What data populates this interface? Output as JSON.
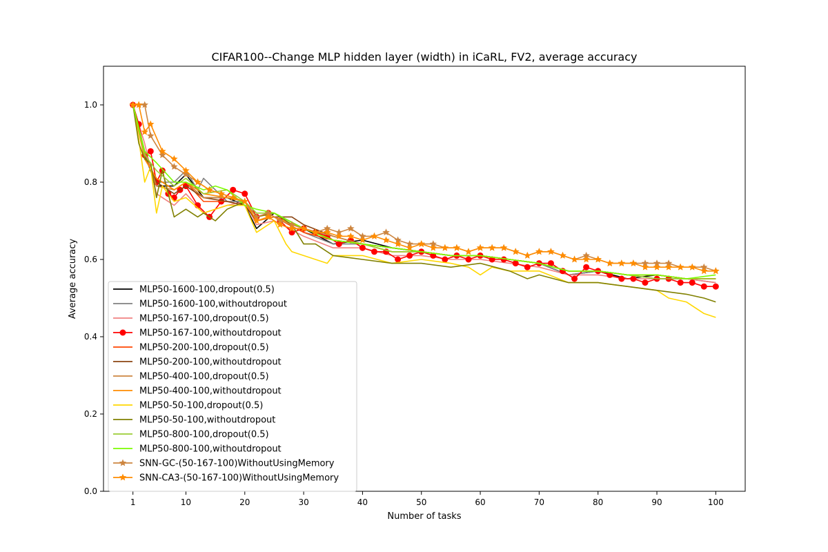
{
  "chart_data": {
    "type": "line",
    "title": "CIFAR100--Change MLP hidden layer (width) in iCaRL, FV2, average accuracy",
    "xlabel": "Number of tasks",
    "ylabel": "Average accuracy",
    "xlim": [
      -4,
      105
    ],
    "ylim": [
      0.0,
      1.1
    ],
    "xticks": [
      1,
      10,
      20,
      30,
      40,
      50,
      60,
      70,
      80,
      90,
      100
    ],
    "yticks": [
      0.0,
      0.2,
      0.4,
      0.6,
      0.8,
      1.0
    ],
    "ytick_labels": [
      "0.0",
      "0.2",
      "0.4",
      "0.6",
      "0.8",
      "1.0"
    ],
    "legend_position": "lower-left",
    "grid": false,
    "series": [
      {
        "name": "MLP50-1600-100,dropout(0.5)",
        "color": "#000000",
        "marker": "none",
        "x": [
          1,
          3,
          5,
          8,
          10,
          13,
          17,
          20,
          22,
          25,
          30,
          35,
          40,
          45,
          50,
          55,
          60,
          65,
          70,
          75,
          80,
          85,
          90,
          95,
          100
        ],
        "y": [
          1.0,
          0.87,
          0.79,
          0.79,
          0.82,
          0.76,
          0.76,
          0.74,
          0.68,
          0.72,
          0.68,
          0.64,
          0.65,
          0.63,
          0.62,
          0.61,
          0.61,
          0.6,
          0.59,
          0.56,
          0.57,
          0.55,
          0.56,
          0.55,
          0.55
        ]
      },
      {
        "name": "MLP50-1600-100,withoutdropout",
        "color": "#808080",
        "marker": "none",
        "x": [
          1,
          3,
          5,
          8,
          10,
          12,
          13,
          17,
          20,
          22,
          25,
          30,
          35,
          40,
          45,
          50,
          55,
          60,
          65,
          70,
          75,
          80,
          85,
          90,
          95,
          100
        ],
        "y": [
          1.0,
          0.88,
          0.8,
          0.8,
          0.83,
          0.78,
          0.81,
          0.75,
          0.75,
          0.7,
          0.71,
          0.67,
          0.64,
          0.64,
          0.63,
          0.62,
          0.61,
          0.61,
          0.6,
          0.59,
          0.56,
          0.57,
          0.56,
          0.55,
          0.55,
          0.54
        ]
      },
      {
        "name": "MLP50-167-100,dropout(0.5)",
        "color": "#f08080",
        "marker": "none",
        "x": [
          1,
          3,
          5,
          8,
          10,
          13,
          17,
          20,
          22,
          25,
          30,
          35,
          40,
          45,
          50,
          55,
          60,
          65,
          70,
          75,
          80,
          85,
          90,
          95,
          100
        ],
        "y": [
          1.0,
          0.9,
          0.77,
          0.74,
          0.77,
          0.72,
          0.74,
          0.75,
          0.69,
          0.7,
          0.66,
          0.63,
          0.63,
          0.61,
          0.61,
          0.6,
          0.6,
          0.59,
          0.58,
          0.56,
          0.56,
          0.55,
          0.55,
          0.55,
          0.54
        ]
      },
      {
        "name": "MLP50-167-100,withoutdropout",
        "color": "#ff0000",
        "marker": "circle",
        "x": [
          1,
          2,
          3,
          4,
          5,
          6,
          7,
          8,
          9,
          10,
          12,
          14,
          16,
          18,
          20,
          22,
          24,
          26,
          28,
          30,
          32,
          34,
          36,
          38,
          40,
          42,
          44,
          46,
          48,
          50,
          52,
          54,
          56,
          58,
          60,
          62,
          64,
          66,
          68,
          70,
          72,
          74,
          76,
          78,
          80,
          82,
          84,
          86,
          88,
          90,
          92,
          94,
          96,
          98,
          100
        ],
        "y": [
          1.0,
          0.95,
          0.87,
          0.88,
          0.8,
          0.83,
          0.77,
          0.76,
          0.78,
          0.79,
          0.74,
          0.71,
          0.75,
          0.78,
          0.77,
          0.71,
          0.72,
          0.7,
          0.67,
          0.68,
          0.67,
          0.66,
          0.64,
          0.65,
          0.63,
          0.62,
          0.62,
          0.6,
          0.61,
          0.62,
          0.61,
          0.6,
          0.61,
          0.6,
          0.61,
          0.6,
          0.6,
          0.59,
          0.58,
          0.59,
          0.59,
          0.57,
          0.55,
          0.58,
          0.57,
          0.56,
          0.55,
          0.55,
          0.54,
          0.55,
          0.55,
          0.54,
          0.54,
          0.53,
          0.53
        ]
      },
      {
        "name": "MLP50-200-100,dropout(0.5)",
        "color": "#ff4500",
        "marker": "none",
        "x": [
          1,
          3,
          5,
          8,
          10,
          13,
          17,
          20,
          22,
          25,
          30,
          35,
          40,
          45,
          50,
          55,
          60,
          65,
          70,
          75,
          80,
          85,
          90,
          95,
          100
        ],
        "y": [
          1.0,
          0.86,
          0.81,
          0.78,
          0.8,
          0.75,
          0.75,
          0.74,
          0.7,
          0.71,
          0.67,
          0.65,
          0.64,
          0.62,
          0.62,
          0.61,
          0.61,
          0.6,
          0.59,
          0.57,
          0.57,
          0.56,
          0.56,
          0.55,
          0.55
        ]
      },
      {
        "name": "MLP50-200-100,withoutdropout",
        "color": "#8b4513",
        "marker": "none",
        "x": [
          1,
          3,
          5,
          8,
          10,
          13,
          17,
          20,
          22,
          25,
          28,
          30,
          35,
          40,
          45,
          50,
          55,
          60,
          65,
          70,
          75,
          80,
          85,
          90,
          95,
          100
        ],
        "y": [
          1.0,
          0.87,
          0.8,
          0.77,
          0.79,
          0.76,
          0.75,
          0.74,
          0.7,
          0.71,
          0.71,
          0.69,
          0.66,
          0.64,
          0.63,
          0.62,
          0.61,
          0.61,
          0.6,
          0.59,
          0.57,
          0.57,
          0.56,
          0.56,
          0.55,
          0.55
        ]
      },
      {
        "name": "MLP50-400-100,dropout(0.5)",
        "color": "#cd853f",
        "marker": "none",
        "x": [
          1,
          3,
          5,
          8,
          10,
          13,
          17,
          20,
          22,
          25,
          30,
          35,
          40,
          45,
          50,
          55,
          60,
          65,
          70,
          75,
          80,
          85,
          90,
          95,
          100
        ],
        "y": [
          1.0,
          0.88,
          0.79,
          0.78,
          0.8,
          0.76,
          0.76,
          0.75,
          0.71,
          0.72,
          0.68,
          0.66,
          0.64,
          0.62,
          0.62,
          0.61,
          0.61,
          0.6,
          0.59,
          0.57,
          0.57,
          0.56,
          0.56,
          0.55,
          0.55
        ]
      },
      {
        "name": "MLP50-400-100,withoutdropout",
        "color": "#ff8c00",
        "marker": "none",
        "x": [
          1,
          3,
          5,
          8,
          10,
          13,
          17,
          20,
          22,
          25,
          30,
          35,
          40,
          45,
          50,
          55,
          60,
          65,
          70,
          75,
          80,
          85,
          90,
          95,
          100
        ],
        "y": [
          1.0,
          0.86,
          0.81,
          0.78,
          0.8,
          0.77,
          0.76,
          0.75,
          0.7,
          0.71,
          0.68,
          0.65,
          0.64,
          0.62,
          0.62,
          0.61,
          0.61,
          0.6,
          0.59,
          0.57,
          0.57,
          0.56,
          0.56,
          0.55,
          0.55
        ]
      },
      {
        "name": "MLP50-50-100,dropout(0.5)",
        "color": "#ffd700",
        "marker": "none",
        "x": [
          1,
          2,
          3,
          4,
          5,
          6,
          8,
          10,
          13,
          17,
          20,
          22,
          25,
          27,
          28,
          30,
          32,
          34,
          35,
          40,
          45,
          50,
          55,
          58,
          60,
          62,
          65,
          70,
          75,
          80,
          85,
          90,
          92,
          95,
          98,
          100
        ],
        "y": [
          1.0,
          0.91,
          0.8,
          0.84,
          0.72,
          0.79,
          0.75,
          0.76,
          0.72,
          0.74,
          0.74,
          0.67,
          0.7,
          0.64,
          0.62,
          0.61,
          0.6,
          0.59,
          0.61,
          0.61,
          0.59,
          0.6,
          0.59,
          0.58,
          0.56,
          0.58,
          0.57,
          0.57,
          0.54,
          0.54,
          0.53,
          0.52,
          0.5,
          0.49,
          0.46,
          0.45
        ]
      },
      {
        "name": "MLP50-50-100,withoutdropout",
        "color": "#808000",
        "marker": "none",
        "x": [
          1,
          2,
          3,
          4,
          5,
          6,
          8,
          10,
          12,
          13,
          15,
          17,
          20,
          22,
          25,
          28,
          30,
          32,
          35,
          40,
          45,
          50,
          55,
          60,
          65,
          68,
          70,
          75,
          80,
          85,
          90,
          95,
          98,
          100
        ],
        "y": [
          1.0,
          0.9,
          0.86,
          0.85,
          0.76,
          0.83,
          0.71,
          0.73,
          0.71,
          0.72,
          0.7,
          0.73,
          0.75,
          0.71,
          0.72,
          0.69,
          0.64,
          0.64,
          0.61,
          0.6,
          0.59,
          0.59,
          0.58,
          0.59,
          0.57,
          0.55,
          0.56,
          0.54,
          0.54,
          0.53,
          0.52,
          0.51,
          0.5,
          0.49
        ]
      },
      {
        "name": "MLP50-800-100,dropout(0.5)",
        "color": "#9acd32",
        "marker": "none",
        "x": [
          1,
          3,
          5,
          8,
          10,
          13,
          17,
          20,
          22,
          25,
          30,
          35,
          40,
          45,
          50,
          55,
          60,
          65,
          70,
          75,
          80,
          85,
          90,
          95,
          100
        ],
        "y": [
          1.0,
          0.87,
          0.83,
          0.79,
          0.81,
          0.77,
          0.78,
          0.75,
          0.72,
          0.72,
          0.68,
          0.65,
          0.64,
          0.62,
          0.62,
          0.61,
          0.61,
          0.6,
          0.59,
          0.57,
          0.57,
          0.56,
          0.55,
          0.55,
          0.55
        ]
      },
      {
        "name": "MLP50-800-100,withoutdropout",
        "color": "#7cfc00",
        "marker": "none",
        "x": [
          1,
          3,
          5,
          8,
          10,
          13,
          15,
          17,
          20,
          22,
          25,
          30,
          35,
          40,
          45,
          50,
          55,
          60,
          65,
          70,
          75,
          80,
          85,
          90,
          95,
          100
        ],
        "y": [
          1.0,
          0.88,
          0.85,
          0.8,
          0.8,
          0.78,
          0.79,
          0.78,
          0.74,
          0.73,
          0.72,
          0.68,
          0.65,
          0.64,
          0.63,
          0.62,
          0.61,
          0.61,
          0.6,
          0.59,
          0.57,
          0.57,
          0.56,
          0.56,
          0.55,
          0.56
        ]
      },
      {
        "name": "SNN-GC-(50-167-100)WithoutUsingMemory",
        "color": "#cd853f",
        "marker": "star",
        "x": [
          1,
          2,
          3,
          4,
          6,
          8,
          10,
          12,
          14,
          16,
          18,
          20,
          22,
          24,
          26,
          28,
          30,
          32,
          34,
          36,
          38,
          40,
          42,
          44,
          46,
          48,
          50,
          52,
          54,
          56,
          58,
          60,
          62,
          64,
          66,
          68,
          70,
          72,
          74,
          76,
          78,
          80,
          82,
          84,
          86,
          88,
          90,
          92,
          94,
          96,
          98,
          100
        ],
        "y": [
          1.0,
          1.0,
          1.0,
          0.92,
          0.87,
          0.84,
          0.82,
          0.8,
          0.78,
          0.77,
          0.76,
          0.75,
          0.71,
          0.72,
          0.7,
          0.69,
          0.68,
          0.67,
          0.68,
          0.67,
          0.68,
          0.66,
          0.66,
          0.67,
          0.65,
          0.64,
          0.64,
          0.64,
          0.63,
          0.63,
          0.62,
          0.63,
          0.63,
          0.63,
          0.62,
          0.61,
          0.62,
          0.62,
          0.61,
          0.6,
          0.61,
          0.6,
          0.59,
          0.59,
          0.59,
          0.59,
          0.59,
          0.59,
          0.58,
          0.58,
          0.58,
          0.57
        ]
      },
      {
        "name": "SNN-CA3-(50-167-100)WithoutUsingMemory",
        "color": "#ff8c00",
        "marker": "star",
        "x": [
          1,
          2,
          3,
          4,
          6,
          8,
          10,
          12,
          14,
          16,
          18,
          20,
          22,
          24,
          26,
          28,
          30,
          32,
          34,
          36,
          38,
          40,
          42,
          44,
          46,
          48,
          50,
          52,
          54,
          56,
          58,
          60,
          62,
          64,
          66,
          68,
          70,
          72,
          74,
          76,
          78,
          80,
          82,
          84,
          86,
          88,
          90,
          92,
          94,
          96,
          98,
          100
        ],
        "y": [
          1.0,
          1.0,
          0.93,
          0.95,
          0.88,
          0.86,
          0.83,
          0.8,
          0.78,
          0.77,
          0.76,
          0.75,
          0.7,
          0.71,
          0.69,
          0.68,
          0.68,
          0.67,
          0.67,
          0.66,
          0.66,
          0.65,
          0.66,
          0.65,
          0.64,
          0.63,
          0.64,
          0.63,
          0.63,
          0.63,
          0.62,
          0.63,
          0.63,
          0.63,
          0.62,
          0.61,
          0.62,
          0.62,
          0.61,
          0.6,
          0.6,
          0.6,
          0.59,
          0.59,
          0.59,
          0.58,
          0.58,
          0.58,
          0.58,
          0.58,
          0.57,
          0.57
        ]
      }
    ]
  }
}
